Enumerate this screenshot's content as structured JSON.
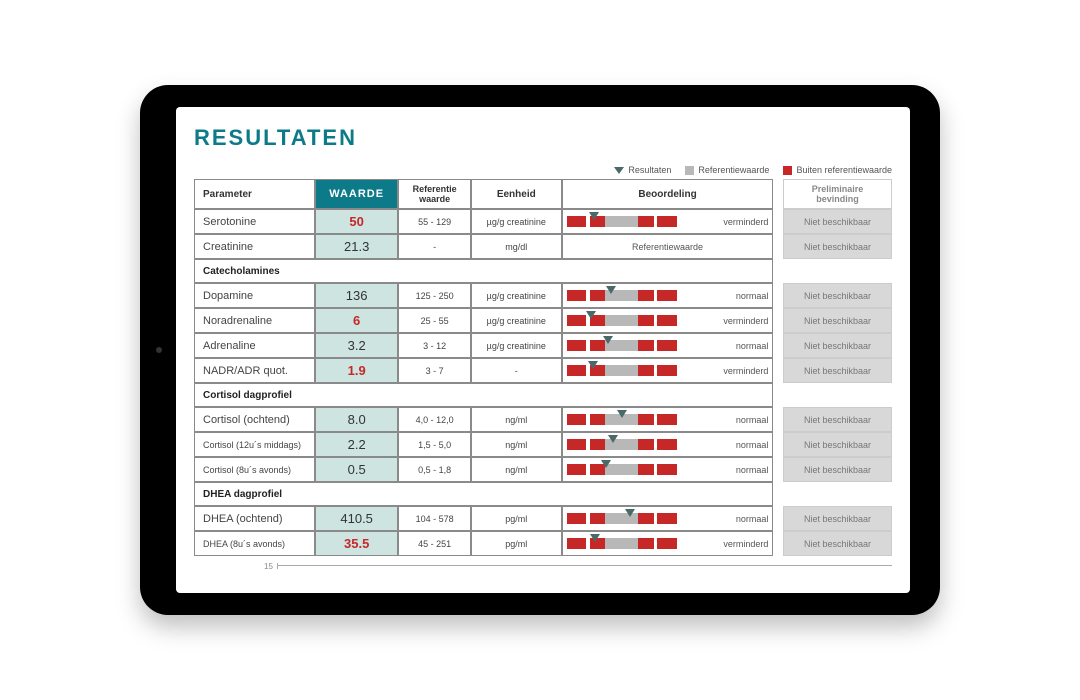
{
  "title": "RESULTATEN",
  "legend": {
    "resultaten": "Resultaten",
    "referentie": "Referentiewaarde",
    "buiten": "Buiten referentiewaarde",
    "marker_color": "#4a6a6a",
    "ref_color": "#b8b8b8",
    "out_color": "#c62828"
  },
  "columns": {
    "parameter": "Parameter",
    "waarde": "WAARDE",
    "referentie": "Referentie waarde",
    "eenheid": "Eenheid",
    "beoordeling": "Beoordeling",
    "prelim": "Preliminaire bevinding"
  },
  "prelim_text": "Niet beschikbaar",
  "sections": {
    "catecholamines": "Catecholamines",
    "cortisol": "Cortisol dagprofiel",
    "dhea": "DHEA dagprofiel"
  },
  "bar_template": {
    "segments": [
      {
        "color": "#c62828",
        "w": 18
      },
      {
        "color": "#ffffff",
        "w": 3
      },
      {
        "color": "#c62828",
        "w": 14
      },
      {
        "color": "#b8b8b8",
        "w": 30
      },
      {
        "color": "#c62828",
        "w": 14
      },
      {
        "color": "#ffffff",
        "w": 3
      },
      {
        "color": "#c62828",
        "w": 18
      }
    ]
  },
  "rows": [
    {
      "param": "Serotonine",
      "value": "50",
      "bad": true,
      "ref": "55 - 129",
      "unit": "µg/g creatinine",
      "marker": 25,
      "label": "verminderd",
      "small": false
    },
    {
      "param": "Creatinine",
      "value": "21.3",
      "bad": false,
      "ref": "-",
      "unit": "mg/dl",
      "nobar": true,
      "center_label": "Referentiewaarde",
      "small": false
    },
    {
      "section": "catecholamines"
    },
    {
      "param": "Dopamine",
      "value": "136",
      "bad": false,
      "ref": "125 - 250",
      "unit": "µg/g creatinine",
      "marker": 40,
      "label": "normaal",
      "small": false
    },
    {
      "param": "Noradrenaline",
      "value": "6",
      "bad": true,
      "ref": "25 - 55",
      "unit": "µg/g creatinine",
      "marker": 22,
      "label": "verminderd",
      "small": false
    },
    {
      "param": "Adrenaline",
      "value": "3.2",
      "bad": false,
      "ref": "3 - 12",
      "unit": "µg/g creatinine",
      "marker": 38,
      "label": "normaal",
      "small": false
    },
    {
      "param": "NADR/ADR quot.",
      "value": "1.9",
      "bad": true,
      "ref": "3 - 7",
      "unit": "-",
      "marker": 24,
      "label": "verminderd",
      "small": false
    },
    {
      "section": "cortisol"
    },
    {
      "param": "Cortisol (ochtend)",
      "value": "8.0",
      "bad": false,
      "ref": "4,0 - 12,0",
      "unit": "ng/ml",
      "marker": 50,
      "label": "normaal",
      "small": false
    },
    {
      "param": "Cortisol (12u´s middags)",
      "value": "2.2",
      "bad": false,
      "ref": "1,5 - 5,0",
      "unit": "ng/ml",
      "marker": 42,
      "label": "normaal",
      "small": true
    },
    {
      "param": "Cortisol (8u´s avonds)",
      "value": "0.5",
      "bad": false,
      "ref": "0,5 - 1,8",
      "unit": "ng/ml",
      "marker": 36,
      "label": "normaal",
      "small": true
    },
    {
      "section": "dhea"
    },
    {
      "param": "DHEA (ochtend)",
      "value": "410.5",
      "bad": false,
      "ref": "104 - 578",
      "unit": "pg/ml",
      "marker": 58,
      "label": "normaal",
      "small": false
    },
    {
      "param": "DHEA (8u´s avonds)",
      "value": "35.5",
      "bad": true,
      "ref": "45 - 251",
      "unit": "pg/ml",
      "marker": 26,
      "label": "verminderd",
      "small": true
    }
  ],
  "footer_tick": "15",
  "colors": {
    "accent": "#0d7a89",
    "value_bg": "#cde4e0",
    "bad_text": "#c62828",
    "prelim_bg": "#d8d8d8"
  }
}
